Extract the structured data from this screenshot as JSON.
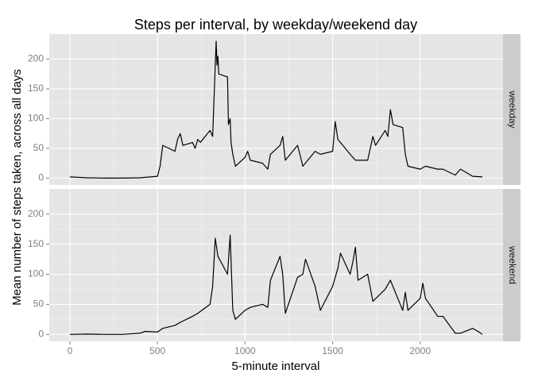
{
  "chart_data": [
    {
      "type": "line",
      "title": "Steps per interval, by weekday/weekend day",
      "y_label": "Mean number of steps taken, across all days",
      "x": [
        0,
        100,
        200,
        300,
        400,
        500,
        515,
        530,
        600,
        615,
        630,
        645,
        700,
        715,
        730,
        745,
        800,
        815,
        830,
        835,
        840,
        845,
        850,
        900,
        905,
        915,
        920,
        930,
        945,
        1000,
        1015,
        1030,
        1100,
        1130,
        1145,
        1200,
        1215,
        1230,
        1300,
        1330,
        1400,
        1430,
        1500,
        1515,
        1530,
        1600,
        1630,
        1700,
        1730,
        1745,
        1800,
        1815,
        1830,
        1845,
        1900,
        1915,
        1930,
        2000,
        2030,
        2100,
        2130,
        2200,
        2230,
        2300,
        2355
      ],
      "series": [
        {
          "name": "weekday",
          "color": "#000000",
          "values": [
            2,
            0.5,
            0,
            0,
            0.5,
            3,
            20,
            55,
            45,
            65,
            75,
            55,
            60,
            50,
            65,
            60,
            80,
            70,
            190,
            230,
            190,
            205,
            175,
            170,
            90,
            100,
            60,
            40,
            20,
            35,
            45,
            30,
            25,
            15,
            40,
            55,
            70,
            30,
            55,
            20,
            45,
            40,
            45,
            95,
            65,
            40,
            30,
            30,
            70,
            55,
            80,
            70,
            115,
            90,
            85,
            40,
            20,
            15,
            20,
            15,
            15,
            5,
            15,
            3,
            2
          ]
        }
      ],
      "xlim": [
        -117.75,
        2472.75
      ],
      "xticks": [
        0,
        500,
        1000,
        1500,
        2000
      ],
      "ylim": [
        -11.5,
        241.9
      ],
      "yticks": [
        0,
        50,
        100,
        150,
        200
      ],
      "grid": true
    },
    {
      "type": "line",
      "x_label": "5-minute interval",
      "x": [
        0,
        100,
        200,
        300,
        400,
        430,
        500,
        530,
        600,
        630,
        700,
        730,
        800,
        815,
        830,
        845,
        900,
        915,
        930,
        945,
        1000,
        1030,
        1100,
        1130,
        1145,
        1200,
        1215,
        1230,
        1300,
        1330,
        1345,
        1400,
        1430,
        1500,
        1530,
        1545,
        1600,
        1615,
        1630,
        1645,
        1700,
        1730,
        1800,
        1830,
        1900,
        1915,
        1930,
        2000,
        2015,
        2030,
        2100,
        2130,
        2200,
        2230,
        2300,
        2330,
        2355
      ],
      "series": [
        {
          "name": "weekend",
          "color": "#000000",
          "values": [
            0,
            0.5,
            0,
            0,
            2,
            5,
            4,
            10,
            15,
            20,
            30,
            35,
            50,
            80,
            160,
            130,
            100,
            165,
            40,
            25,
            40,
            45,
            50,
            45,
            90,
            130,
            100,
            35,
            95,
            100,
            125,
            80,
            40,
            80,
            110,
            135,
            100,
            120,
            145,
            90,
            100,
            55,
            75,
            90,
            40,
            70,
            40,
            60,
            85,
            60,
            30,
            30,
            2,
            2,
            10,
            5,
            0
          ]
        }
      ],
      "xlim": [
        -117.75,
        2472.75
      ],
      "xticks": [
        0,
        500,
        1000,
        1500,
        2000
      ],
      "ylim": [
        -11.5,
        241.9
      ],
      "yticks": [
        0,
        50,
        100,
        150,
        200
      ],
      "grid": true
    }
  ]
}
